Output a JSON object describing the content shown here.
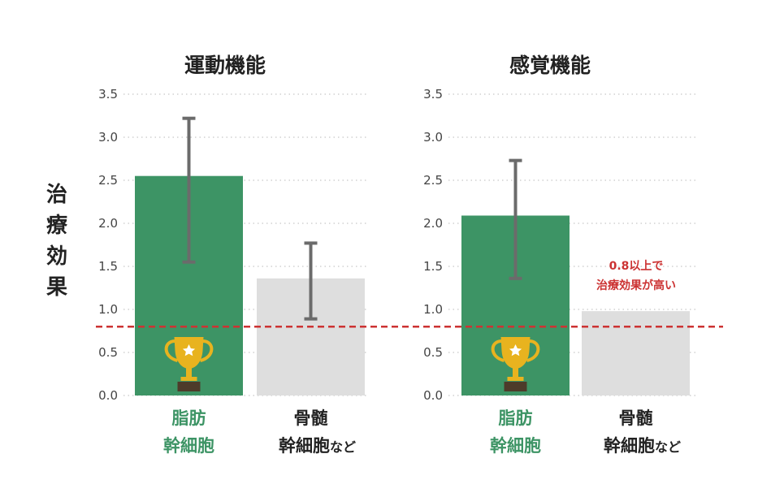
{
  "colors": {
    "primary_bar": "#3d9465",
    "secondary_bar": "#dedede",
    "error_bar": "#6b6b6b",
    "threshold": "#cc3333",
    "primary_label": "#3d9465",
    "secondary_label": "#222222",
    "trophy": "#e8b31f"
  },
  "y_axis_label": [
    "治",
    "療",
    "効",
    "果"
  ],
  "threshold": {
    "value": 0.8,
    "annotation_lines": [
      "0.8以上で",
      "治療効果が高い"
    ]
  },
  "chart_data": [
    {
      "type": "bar",
      "title": "運動機能",
      "ylim": [
        0,
        3.5
      ],
      "yticks": [
        "0.0",
        "0.5",
        "1.0",
        "1.5",
        "2.0",
        "2.5",
        "3.0",
        "3.5"
      ],
      "grid": true,
      "categories": [
        {
          "lines": [
            "脂肪",
            "幹細胞"
          ],
          "suffix": "",
          "value": 2.55,
          "err_low": 1.55,
          "err_high": 3.22,
          "trophy": true,
          "style": "primary"
        },
        {
          "lines": [
            "骨髄",
            "幹細胞"
          ],
          "suffix": "など",
          "value": 1.36,
          "err_low": 0.89,
          "err_high": 1.77,
          "trophy": false,
          "style": "secondary"
        }
      ]
    },
    {
      "type": "bar",
      "title": "感覚機能",
      "ylim": [
        0,
        3.5
      ],
      "yticks": [
        "0.0",
        "0.5",
        "1.0",
        "1.5",
        "2.0",
        "2.5",
        "3.0",
        "3.5"
      ],
      "grid": true,
      "categories": [
        {
          "lines": [
            "脂肪",
            "幹細胞"
          ],
          "suffix": "",
          "value": 2.09,
          "err_low": 1.36,
          "err_high": 2.73,
          "trophy": true,
          "style": "primary"
        },
        {
          "lines": [
            "骨髄",
            "幹細胞"
          ],
          "suffix": "など",
          "value": 0.98,
          "err_low": null,
          "err_high": null,
          "trophy": false,
          "style": "secondary"
        }
      ]
    }
  ]
}
